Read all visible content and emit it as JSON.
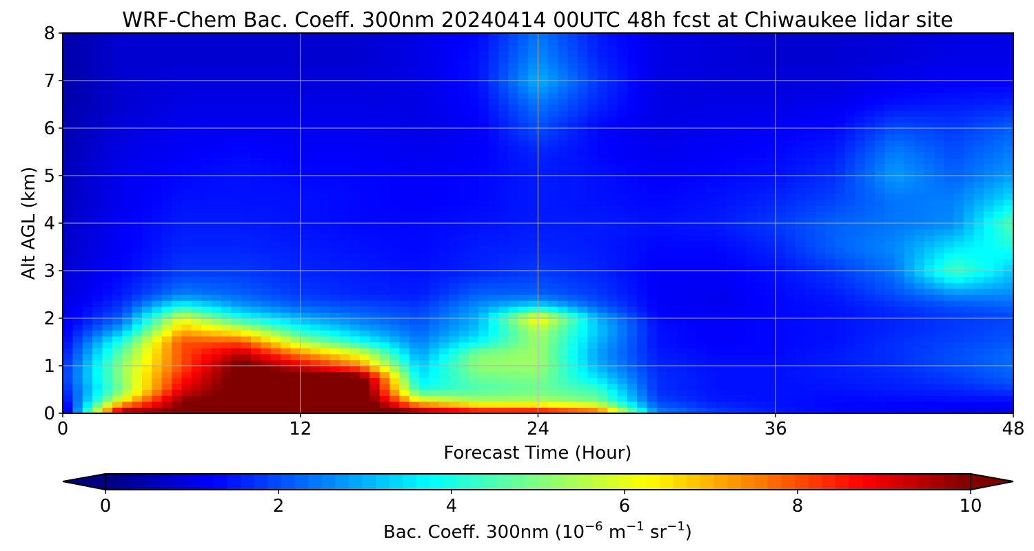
{
  "chart_data": {
    "type": "heatmap",
    "title": "WRF-Chem Bac. Coeff. 300nm  20240414 00UTC 48h fcst at Chiwaukee lidar site",
    "xlabel": "Forecast Time (Hour)",
    "ylabel": "Alt AGL (km)",
    "xlim": [
      0,
      48
    ],
    "ylim": [
      0,
      8
    ],
    "xticks": [
      "0",
      "12",
      "24",
      "36",
      "48"
    ],
    "yticks": [
      "0",
      "1",
      "2",
      "3",
      "4",
      "5",
      "6",
      "7",
      "8"
    ],
    "grid": true,
    "colormap": "jet",
    "colorbar": {
      "label_main": "Bac. Coeff. 300nm  (10",
      "exp1": "−6",
      "mid1": " m",
      "exp2": "−1",
      "mid2": " sr",
      "exp3": "−1",
      "close": ")",
      "range": [
        0,
        10
      ],
      "ticks": [
        "0",
        "2",
        "4",
        "6",
        "8",
        "10"
      ],
      "extend": "both"
    },
    "x": [
      0,
      3,
      6,
      9,
      12,
      15,
      18,
      21,
      24,
      27,
      30,
      33,
      36,
      39,
      42,
      45,
      48
    ],
    "y": [
      0.05,
      0.25,
      0.5,
      0.75,
      1.0,
      1.25,
      1.5,
      1.75,
      2.0,
      2.25,
      2.5,
      3.0,
      3.5,
      4.0,
      4.5,
      5.0,
      5.5,
      6.0,
      6.5,
      7.0,
      7.5,
      8.0
    ],
    "values": [
      [
        0.4,
        9.5,
        10.0,
        10.5,
        11.0,
        11.0,
        9.5,
        8.5,
        8.5,
        7.5,
        2.5,
        1.8,
        1.5,
        1.3,
        1.2,
        1.1,
        1.0
      ],
      [
        1.0,
        6.5,
        10.0,
        10.5,
        11.0,
        11.0,
        6.5,
        5.5,
        5.5,
        5.0,
        1.9,
        1.5,
        1.4,
        1.3,
        1.3,
        1.3,
        1.3
      ],
      [
        1.5,
        5.0,
        9.0,
        10.5,
        11.0,
        11.0,
        4.0,
        4.5,
        4.8,
        4.3,
        1.7,
        1.4,
        1.4,
        1.4,
        1.5,
        1.6,
        1.8
      ],
      [
        1.7,
        5.2,
        8.5,
        10.5,
        11.0,
        10.5,
        3.5,
        4.8,
        5.0,
        3.5,
        1.7,
        1.4,
        1.4,
        1.5,
        1.6,
        1.8,
        2.2
      ],
      [
        1.6,
        5.2,
        8.0,
        10.3,
        9.0,
        7.5,
        3.2,
        5.2,
        5.3,
        3.0,
        1.6,
        1.4,
        1.4,
        1.5,
        1.7,
        2.0,
        2.3
      ],
      [
        1.4,
        4.8,
        8.0,
        9.5,
        7.5,
        6.0,
        2.8,
        5.0,
        5.3,
        2.8,
        1.5,
        1.3,
        1.3,
        1.5,
        1.7,
        2.0,
        2.3
      ],
      [
        1.2,
        4.2,
        8.0,
        8.0,
        5.5,
        4.0,
        2.5,
        3.8,
        5.3,
        3.0,
        1.4,
        1.2,
        1.3,
        1.4,
        1.7,
        1.9,
        2.1
      ],
      [
        1.1,
        3.0,
        7.0,
        6.0,
        4.0,
        3.0,
        2.2,
        3.2,
        5.5,
        3.2,
        1.4,
        1.2,
        1.3,
        1.4,
        1.6,
        1.8,
        2.0
      ],
      [
        1.0,
        2.2,
        6.0,
        4.0,
        3.0,
        2.4,
        2.0,
        3.0,
        6.5,
        3.0,
        1.3,
        1.2,
        1.3,
        1.4,
        1.6,
        1.8,
        1.9
      ],
      [
        1.0,
        1.8,
        4.0,
        2.8,
        2.2,
        2.0,
        1.8,
        2.7,
        3.5,
        2.2,
        1.2,
        1.1,
        1.3,
        1.4,
        1.7,
        2.0,
        2.2
      ],
      [
        0.9,
        1.5,
        2.5,
        2.2,
        1.8,
        1.6,
        1.5,
        2.2,
        2.2,
        1.8,
        1.2,
        1.1,
        1.3,
        1.5,
        2.0,
        2.6,
        2.6
      ],
      [
        0.8,
        1.3,
        1.8,
        1.8,
        1.6,
        1.5,
        1.4,
        1.6,
        1.8,
        1.6,
        1.2,
        1.2,
        1.4,
        1.8,
        2.4,
        4.5,
        3.2
      ],
      [
        0.7,
        1.2,
        1.6,
        1.6,
        1.5,
        1.4,
        1.3,
        1.5,
        1.6,
        1.5,
        1.3,
        1.3,
        1.6,
        2.2,
        2.6,
        3.5,
        4.0
      ],
      [
        0.7,
        1.2,
        1.5,
        1.5,
        1.4,
        1.3,
        1.3,
        1.4,
        1.5,
        1.5,
        1.4,
        1.5,
        1.8,
        2.2,
        2.4,
        2.6,
        4.6
      ],
      [
        0.6,
        1.1,
        1.4,
        1.4,
        1.4,
        1.3,
        1.2,
        1.3,
        1.5,
        1.4,
        1.3,
        1.4,
        1.6,
        1.9,
        2.4,
        2.5,
        3.5
      ],
      [
        0.6,
        1.1,
        1.3,
        1.4,
        1.3,
        1.3,
        1.2,
        1.3,
        1.5,
        1.4,
        1.2,
        1.3,
        1.4,
        1.7,
        2.8,
        2.2,
        2.8
      ],
      [
        0.5,
        1.0,
        1.2,
        1.3,
        1.2,
        1.2,
        1.1,
        1.2,
        1.6,
        1.3,
        1.1,
        1.2,
        1.3,
        1.5,
        2.5,
        2.0,
        2.5
      ],
      [
        0.5,
        0.9,
        1.1,
        1.1,
        1.1,
        1.1,
        1.0,
        1.2,
        2.0,
        1.3,
        1.0,
        1.1,
        1.2,
        1.3,
        2.0,
        1.8,
        2.2
      ],
      [
        0.4,
        0.8,
        1.0,
        1.0,
        1.0,
        1.0,
        1.0,
        1.3,
        2.4,
        1.6,
        1.0,
        1.0,
        1.0,
        1.1,
        1.4,
        1.5,
        1.6
      ],
      [
        0.4,
        0.8,
        0.9,
        0.9,
        0.9,
        0.9,
        1.0,
        1.4,
        3.0,
        1.8,
        1.0,
        0.9,
        0.9,
        0.9,
        1.1,
        1.2,
        1.2
      ],
      [
        0.4,
        0.8,
        0.8,
        0.8,
        0.8,
        0.8,
        1.0,
        1.4,
        2.6,
        1.6,
        1.0,
        0.9,
        0.8,
        0.8,
        0.9,
        1.0,
        1.0
      ],
      [
        0.4,
        0.8,
        0.8,
        0.8,
        0.8,
        0.8,
        1.0,
        1.3,
        2.4,
        1.5,
        1.0,
        0.9,
        0.8,
        0.8,
        0.9,
        1.0,
        1.0
      ]
    ]
  }
}
